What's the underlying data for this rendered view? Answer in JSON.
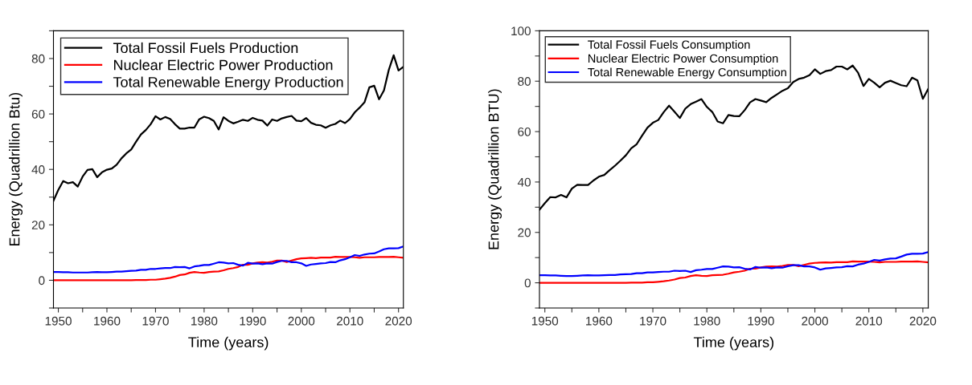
{
  "chart_data": [
    {
      "type": "line",
      "xlabel": "Time (years)",
      "ylabel": "Energy (Quadrillion Btu)",
      "xlim": [
        1949,
        2021
      ],
      "ylim": [
        -10,
        90
      ],
      "xticks": [
        1950,
        {
          "value": 1955,
          "label": null
        },
        1960,
        {
          "value": 1965,
          "label": null
        },
        1970,
        {
          "value": 1975,
          "label": null
        },
        1980,
        {
          "value": 1985,
          "label": null
        },
        1990,
        {
          "value": 1995,
          "label": null
        },
        2000,
        {
          "value": 2005,
          "label": null
        },
        2010,
        {
          "value": 2015,
          "label": null
        },
        2020
      ],
      "yticks": [
        {
          "value": -10,
          "label": null
        },
        0,
        {
          "value": 10,
          "label": null
        },
        20,
        {
          "value": 30,
          "label": null
        },
        40,
        {
          "value": 50,
          "label": null
        },
        60,
        {
          "value": 70,
          "label": null
        },
        80,
        {
          "value": 90,
          "label": null
        }
      ],
      "grid": false,
      "legend": "top left",
      "line_style": "solid",
      "marker": "none",
      "x": [
        1949,
        1950,
        1951,
        1952,
        1953,
        1954,
        1955,
        1956,
        1957,
        1958,
        1959,
        1960,
        1961,
        1962,
        1963,
        1964,
        1965,
        1966,
        1967,
        1968,
        1969,
        1970,
        1971,
        1972,
        1973,
        1974,
        1975,
        1976,
        1977,
        1978,
        1979,
        1980,
        1981,
        1982,
        1983,
        1984,
        1985,
        1986,
        1987,
        1988,
        1989,
        1990,
        1991,
        1992,
        1993,
        1994,
        1995,
        1996,
        1997,
        1998,
        1999,
        2000,
        2001,
        2002,
        2003,
        2004,
        2005,
        2006,
        2007,
        2008,
        2009,
        2010,
        2011,
        2012,
        2013,
        2014,
        2015,
        2016,
        2017,
        2018,
        2019,
        2020,
        2021
      ],
      "series": [
        {
          "name": "Total Fossil Fuels Production",
          "color": "#000000",
          "values": [
            28.7,
            32.6,
            35.8,
            35.0,
            35.4,
            33.8,
            37.4,
            39.8,
            40.1,
            37.2,
            39.0,
            39.9,
            40.3,
            41.7,
            44.0,
            45.8,
            47.2,
            50.0,
            52.6,
            54.2,
            56.3,
            59.2,
            58.0,
            58.9,
            58.2,
            56.3,
            54.7,
            54.7,
            55.1,
            55.1,
            58.1,
            59.0,
            58.5,
            57.5,
            54.4,
            58.8,
            57.5,
            56.6,
            57.2,
            57.9,
            57.5,
            58.6,
            57.9,
            57.6,
            55.8,
            58.0,
            57.5,
            58.4,
            58.9,
            59.3,
            57.6,
            57.4,
            58.5,
            56.8,
            56.1,
            55.9,
            55.0,
            55.9,
            56.4,
            57.6,
            56.7,
            58.2,
            60.6,
            62.3,
            64.2,
            69.6,
            70.2,
            65.3,
            68.5,
            75.9,
            81.2,
            75.7,
            77.0
          ]
        },
        {
          "name": "Nuclear Electric Power Production",
          "color": "#ff0000",
          "values": [
            0.0,
            0.0,
            0.0,
            0.0,
            0.0,
            0.0,
            0.0,
            0.0,
            0.0,
            0.0,
            0.0,
            0.0,
            0.0,
            0.0,
            0.0,
            0.0,
            0.0,
            0.1,
            0.1,
            0.1,
            0.2,
            0.2,
            0.4,
            0.6,
            0.9,
            1.3,
            1.9,
            2.1,
            2.7,
            3.0,
            2.8,
            2.7,
            3.0,
            3.1,
            3.2,
            3.6,
            4.1,
            4.4,
            4.8,
            5.6,
            5.6,
            6.1,
            6.4,
            6.5,
            6.4,
            6.7,
            7.1,
            7.1,
            6.6,
            7.1,
            7.6,
            7.9,
            8.0,
            8.1,
            8.0,
            8.2,
            8.2,
            8.2,
            8.5,
            8.4,
            8.4,
            8.4,
            8.3,
            8.1,
            8.3,
            8.3,
            8.3,
            8.4,
            8.4,
            8.4,
            8.5,
            8.3,
            8.1
          ]
        },
        {
          "name": "Total Renewable Energy Production",
          "color": "#0000ff",
          "values": [
            3.0,
            3.0,
            2.9,
            2.9,
            2.8,
            2.8,
            2.8,
            2.8,
            2.9,
            3.0,
            2.9,
            2.9,
            3.0,
            3.1,
            3.1,
            3.3,
            3.4,
            3.5,
            3.8,
            3.8,
            4.1,
            4.1,
            4.3,
            4.4,
            4.4,
            4.8,
            4.7,
            4.8,
            4.3,
            5.0,
            5.2,
            5.5,
            5.5,
            6.0,
            6.5,
            6.4,
            6.1,
            6.2,
            5.6,
            5.3,
            6.3,
            6.0,
            6.1,
            5.8,
            6.1,
            6.0,
            6.6,
            7.0,
            7.0,
            6.5,
            6.5,
            6.1,
            5.2,
            5.7,
            5.9,
            6.1,
            6.2,
            6.6,
            6.5,
            7.2,
            7.6,
            8.3,
            9.1,
            8.8,
            9.3,
            9.6,
            9.7,
            10.4,
            11.2,
            11.5,
            11.5,
            11.6,
            12.2
          ]
        }
      ]
    },
    {
      "type": "line",
      "xlabel": "Time (years)",
      "ylabel": "Energy (Quadrillion BTU)",
      "xlim": [
        1949,
        2021
      ],
      "ylim": [
        -10,
        100
      ],
      "xticks": [
        1950,
        {
          "value": 1955,
          "label": null
        },
        1960,
        {
          "value": 1965,
          "label": null
        },
        1970,
        {
          "value": 1975,
          "label": null
        },
        1980,
        {
          "value": 1985,
          "label": null
        },
        1990,
        {
          "value": 1995,
          "label": null
        },
        2000,
        {
          "value": 2005,
          "label": null
        },
        2010,
        {
          "value": 2015,
          "label": null
        },
        2020
      ],
      "yticks": [
        {
          "value": -10,
          "label": null
        },
        0,
        {
          "value": 10,
          "label": null
        },
        20,
        {
          "value": 30,
          "label": null
        },
        40,
        {
          "value": 50,
          "label": null
        },
        60,
        {
          "value": 70,
          "label": null
        },
        80,
        {
          "value": 90,
          "label": null
        },
        100
      ],
      "grid": false,
      "legend": "top left",
      "line_style": "solid",
      "marker": "none",
      "x": [
        1949,
        1950,
        1951,
        1952,
        1953,
        1954,
        1955,
        1956,
        1957,
        1958,
        1959,
        1960,
        1961,
        1962,
        1963,
        1964,
        1965,
        1966,
        1967,
        1968,
        1969,
        1970,
        1971,
        1972,
        1973,
        1974,
        1975,
        1976,
        1977,
        1978,
        1979,
        1980,
        1981,
        1982,
        1983,
        1984,
        1985,
        1986,
        1987,
        1988,
        1989,
        1990,
        1991,
        1992,
        1993,
        1994,
        1995,
        1996,
        1997,
        1998,
        1999,
        2000,
        2001,
        2002,
        2003,
        2004,
        2005,
        2006,
        2007,
        2008,
        2009,
        2010,
        2011,
        2012,
        2013,
        2014,
        2015,
        2016,
        2017,
        2018,
        2019,
        2020,
        2021
      ],
      "series": [
        {
          "name": "Total Fossil Fuels Consumption",
          "color": "#000000",
          "values": [
            29.0,
            31.6,
            34.0,
            33.9,
            34.9,
            33.9,
            37.4,
            38.9,
            38.8,
            38.8,
            40.6,
            42.1,
            42.8,
            44.7,
            46.5,
            48.5,
            50.6,
            53.4,
            55.0,
            58.4,
            61.6,
            63.5,
            64.6,
            67.7,
            70.3,
            67.9,
            65.4,
            69.1,
            70.9,
            71.9,
            72.9,
            69.8,
            67.8,
            64.0,
            63.3,
            66.6,
            66.2,
            66.1,
            68.5,
            71.6,
            72.9,
            72.3,
            71.7,
            73.4,
            74.8,
            76.2,
            77.2,
            79.7,
            80.9,
            81.4,
            82.4,
            84.7,
            82.9,
            84.0,
            84.4,
            85.8,
            85.8,
            84.7,
            86.2,
            83.4,
            78.1,
            80.9,
            79.4,
            77.6,
            79.4,
            80.2,
            79.3,
            78.4,
            78.0,
            81.4,
            80.3,
            73.0,
            77.0
          ]
        },
        {
          "name": "Nuclear Electric Power Consumption",
          "color": "#ff0000",
          "values": [
            0.0,
            0.0,
            0.0,
            0.0,
            0.0,
            0.0,
            0.0,
            0.0,
            0.0,
            0.0,
            0.0,
            0.0,
            0.0,
            0.0,
            0.0,
            0.0,
            0.0,
            0.1,
            0.1,
            0.1,
            0.2,
            0.2,
            0.4,
            0.6,
            0.9,
            1.3,
            1.9,
            2.1,
            2.7,
            3.0,
            2.8,
            2.7,
            3.0,
            3.1,
            3.2,
            3.6,
            4.1,
            4.4,
            4.8,
            5.6,
            5.6,
            6.1,
            6.4,
            6.5,
            6.4,
            6.7,
            7.1,
            7.1,
            6.6,
            7.1,
            7.6,
            7.9,
            8.0,
            8.1,
            8.0,
            8.2,
            8.2,
            8.2,
            8.5,
            8.4,
            8.4,
            8.4,
            8.3,
            8.1,
            8.3,
            8.3,
            8.3,
            8.4,
            8.4,
            8.4,
            8.5,
            8.3,
            8.1
          ]
        },
        {
          "name": "Total Renewable Energy Consumption",
          "color": "#0000ff",
          "values": [
            3.0,
            3.0,
            2.9,
            2.9,
            2.8,
            2.7,
            2.7,
            2.8,
            2.9,
            3.0,
            2.9,
            2.9,
            3.0,
            3.1,
            3.1,
            3.3,
            3.4,
            3.5,
            3.8,
            3.8,
            4.1,
            4.1,
            4.3,
            4.4,
            4.4,
            4.8,
            4.7,
            4.8,
            4.3,
            5.0,
            5.2,
            5.5,
            5.5,
            6.0,
            6.5,
            6.4,
            6.1,
            6.2,
            5.6,
            5.3,
            6.3,
            6.0,
            6.1,
            5.8,
            6.1,
            6.0,
            6.6,
            7.0,
            7.0,
            6.5,
            6.5,
            6.1,
            5.2,
            5.7,
            5.9,
            6.1,
            6.2,
            6.6,
            6.5,
            7.2,
            7.6,
            8.3,
            9.1,
            8.8,
            9.3,
            9.6,
            9.7,
            10.4,
            11.2,
            11.5,
            11.5,
            11.6,
            12.2
          ]
        }
      ]
    }
  ]
}
